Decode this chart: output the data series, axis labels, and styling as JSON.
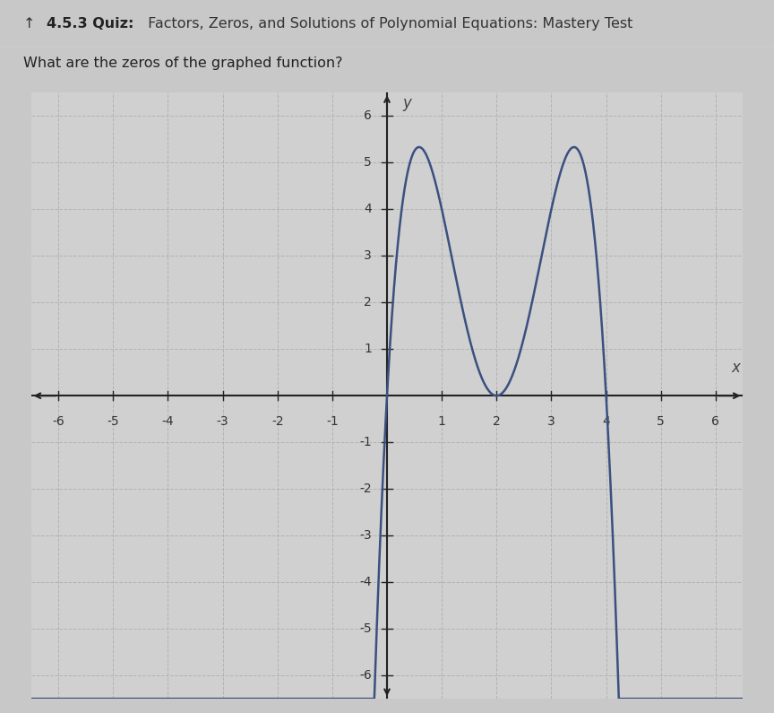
{
  "title_bold": "4.5.3 Quiz:",
  "title_rest": " Factors, Zeros, and Solutions of Polynomial Equations: Mastery Test",
  "subtitle": "What are the zeros of the graphed function?",
  "xlim": [
    -6.5,
    6.5
  ],
  "ylim": [
    -6.5,
    6.5
  ],
  "xticks": [
    -6,
    -5,
    -4,
    -3,
    -2,
    -1,
    1,
    2,
    3,
    4,
    5,
    6
  ],
  "yticks": [
    -6,
    -5,
    -4,
    -3,
    -2,
    -1,
    1,
    2,
    3,
    4,
    5,
    6
  ],
  "curve_color": "#3a5080",
  "bg_color": "#d0d0d0",
  "fig_bg_color": "#c8c8c8",
  "grid_color": "#b0b0b0",
  "axes_color": "#222222",
  "scale_factor": 1.3333,
  "curve_linewidth": 1.8,
  "xlabel": "x",
  "ylabel": "y",
  "tick_fontsize": 10,
  "label_fontsize": 12,
  "title_fontsize": 11.5,
  "subtitle_fontsize": 11.5
}
